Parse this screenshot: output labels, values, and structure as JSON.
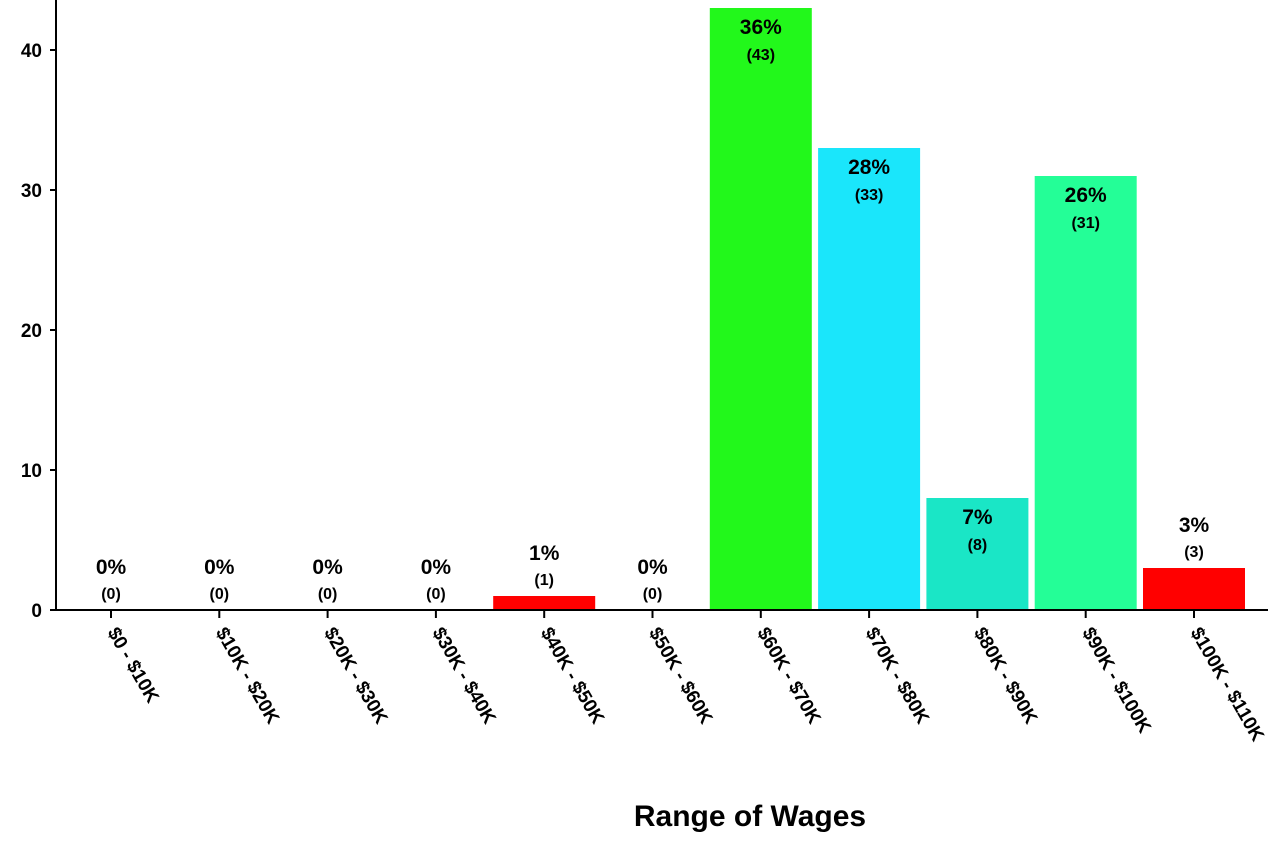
{
  "chart_data": {
    "type": "bar",
    "title": "",
    "xlabel": "Range of Wages",
    "ylabel": "",
    "ylim": [
      0,
      43
    ],
    "yticks": [
      0,
      10,
      20,
      30,
      40
    ],
    "grid": false,
    "categories": [
      "$0 - $10K",
      "$10K - $20K",
      "$20K - $30K",
      "$30K - $40K",
      "$40K - $50K",
      "$50K - $60K",
      "$60K - $70K",
      "$70K - $80K",
      "$80K - $90K",
      "$90K - $100K",
      "$100K - $110K"
    ],
    "values": [
      0,
      0,
      0,
      0,
      1,
      0,
      43,
      33,
      8,
      31,
      3
    ],
    "percent_labels": [
      "0%",
      "0%",
      "0%",
      "0%",
      "1%",
      "0%",
      "36%",
      "28%",
      "7%",
      "26%",
      "3%"
    ],
    "count_labels": [
      "(0)",
      "(0)",
      "(0)",
      "(0)",
      "(1)",
      "(0)",
      "(43)",
      "(33)",
      "(8)",
      "(31)",
      "(3)"
    ],
    "colors": [
      "#ff0000",
      "#ff0000",
      "#ff0000",
      "#ff0000",
      "#ff0000",
      "#ff0000",
      "#22f81b",
      "#1ae6fb",
      "#1ae6c6",
      "#24fe97",
      "#ff0000"
    ]
  }
}
